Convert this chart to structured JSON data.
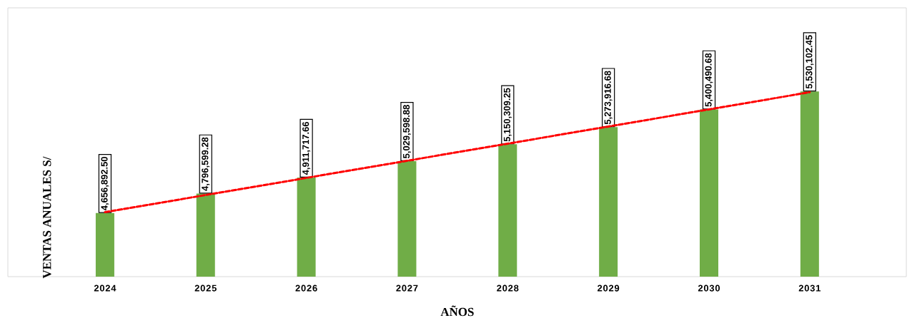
{
  "chart_data": {
    "type": "bar",
    "xlabel": "AÑOS",
    "ylabel": "VENTAS ANUALES S/",
    "categories": [
      "2024",
      "2025",
      "2026",
      "2027",
      "2028",
      "2029",
      "2030",
      "2031"
    ],
    "series": [
      {
        "color": "#70ad47",
        "values": [
          4656892.5,
          4796599.28,
          4911717.66,
          5029598.88,
          5150309.25,
          5273916.68,
          5400490.68,
          5530102.45
        ],
        "value_labels": [
          "4,656,892.50",
          "4,796,599.28",
          "4,911,717.66",
          "5,029,598.88",
          "5,150,309.25",
          "5,273,916.68",
          "5,400,490.68",
          "5,530,102.45"
        ]
      },
      {
        "type": "line",
        "color": "#ff0000",
        "line_style": "dashed",
        "marker": "none",
        "values": [
          4663000,
          4786000,
          4909000,
          5032000,
          5155000,
          5278000,
          5401000,
          5524000
        ]
      }
    ],
    "ylim": [
      4200000,
      6130000
    ]
  }
}
